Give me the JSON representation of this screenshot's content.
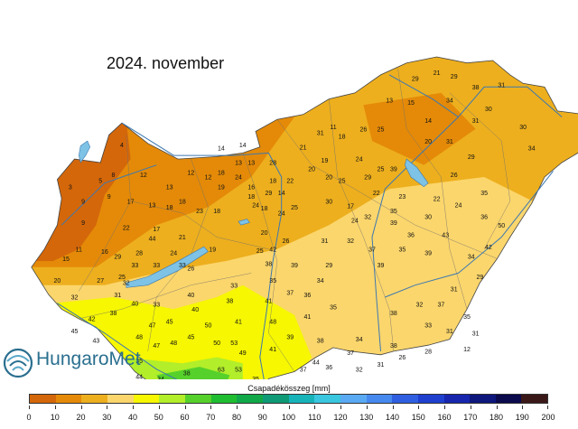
{
  "title": "2024. november",
  "logo": {
    "text": "HungaroMet",
    "icon": "swirl-logo-icon"
  },
  "legend": {
    "title": "Csapadékösszeg [mm]",
    "ticks": [
      "0",
      "10",
      "20",
      "30",
      "40",
      "50",
      "60",
      "70",
      "80",
      "90",
      "100",
      "110",
      "120",
      "130",
      "140",
      "150",
      "160",
      "170",
      "180",
      "190",
      "200"
    ],
    "colors": [
      "#d4670a",
      "#e48a08",
      "#edaf1e",
      "#fbd66c",
      "#f6f700",
      "#b2ee2a",
      "#56d12b",
      "#1fbd31",
      "#10a848",
      "#0e9a76",
      "#16b3b9",
      "#39c6df",
      "#5aaaf3",
      "#4689ef",
      "#2f5ee0",
      "#1f3fcf",
      "#1726ad",
      "#0e177c",
      "#0a0a4d",
      "#3b1818"
    ]
  },
  "station_values": [
    {
      "lon": 16.6,
      "lat": 47.5,
      "v": "3"
    },
    {
      "lon": 16.75,
      "lat": 47.38,
      "v": "9"
    },
    {
      "lon": 16.95,
      "lat": 47.55,
      "v": "5"
    },
    {
      "lon": 17.1,
      "lat": 47.6,
      "v": "8"
    },
    {
      "lon": 17.2,
      "lat": 47.85,
      "v": "4"
    },
    {
      "lon": 17.05,
      "lat": 47.42,
      "v": "9"
    },
    {
      "lon": 16.75,
      "lat": 47.2,
      "v": "9"
    },
    {
      "lon": 16.7,
      "lat": 46.98,
      "v": "11"
    },
    {
      "lon": 16.55,
      "lat": 46.9,
      "v": "15"
    },
    {
      "lon": 17.0,
      "lat": 46.96,
      "v": "16"
    },
    {
      "lon": 16.45,
      "lat": 46.72,
      "v": "20"
    },
    {
      "lon": 16.65,
      "lat": 46.58,
      "v": "32"
    },
    {
      "lon": 16.95,
      "lat": 46.72,
      "v": "27"
    },
    {
      "lon": 17.3,
      "lat": 47.38,
      "v": "17"
    },
    {
      "lon": 17.45,
      "lat": 47.6,
      "v": "12"
    },
    {
      "lon": 17.75,
      "lat": 47.5,
      "v": "13"
    },
    {
      "lon": 18.0,
      "lat": 47.62,
      "v": "12"
    },
    {
      "lon": 18.2,
      "lat": 47.58,
      "v": "12"
    },
    {
      "lon": 18.35,
      "lat": 47.5,
      "v": "19"
    },
    {
      "lon": 18.35,
      "lat": 47.62,
      "v": "18"
    },
    {
      "lon": 18.55,
      "lat": 47.58,
      "v": "24"
    },
    {
      "lon": 18.7,
      "lat": 47.5,
      "v": "16"
    },
    {
      "lon": 18.7,
      "lat": 47.7,
      "v": "13"
    },
    {
      "lon": 18.6,
      "lat": 47.85,
      "v": "14"
    },
    {
      "lon": 18.95,
      "lat": 47.7,
      "v": "28"
    },
    {
      "lon": 18.95,
      "lat": 47.55,
      "v": "18"
    },
    {
      "lon": 19.05,
      "lat": 47.45,
      "v": "14"
    },
    {
      "lon": 19.15,
      "lat": 47.55,
      "v": "22"
    },
    {
      "lon": 19.05,
      "lat": 47.28,
      "v": "24"
    },
    {
      "lon": 19.2,
      "lat": 47.33,
      "v": "25"
    },
    {
      "lon": 18.85,
      "lat": 47.32,
      "v": "18"
    },
    {
      "lon": 18.85,
      "lat": 47.12,
      "v": "20"
    },
    {
      "lon": 19.1,
      "lat": 47.05,
      "v": "26"
    },
    {
      "lon": 18.7,
      "lat": 47.42,
      "v": "18"
    },
    {
      "lon": 18.3,
      "lat": 47.3,
      "v": "18"
    },
    {
      "lon": 18.1,
      "lat": 47.3,
      "v": "23"
    },
    {
      "lon": 17.75,
      "lat": 47.33,
      "v": "18"
    },
    {
      "lon": 17.55,
      "lat": 47.35,
      "v": "13"
    },
    {
      "lon": 17.9,
      "lat": 47.38,
      "v": "18"
    },
    {
      "lon": 17.6,
      "lat": 47.15,
      "v": "17"
    },
    {
      "lon": 17.9,
      "lat": 47.08,
      "v": "21"
    },
    {
      "lon": 17.55,
      "lat": 47.07,
      "v": "44"
    },
    {
      "lon": 18.25,
      "lat": 46.98,
      "v": "19"
    },
    {
      "lon": 17.25,
      "lat": 47.16,
      "v": "22"
    },
    {
      "lon": 17.15,
      "lat": 46.92,
      "v": "29"
    },
    {
      "lon": 17.35,
      "lat": 46.85,
      "v": "33"
    },
    {
      "lon": 17.6,
      "lat": 46.85,
      "v": "33"
    },
    {
      "lon": 17.9,
      "lat": 46.85,
      "v": "33"
    },
    {
      "lon": 17.8,
      "lat": 46.95,
      "v": "24"
    },
    {
      "lon": 18.0,
      "lat": 46.82,
      "v": "26"
    },
    {
      "lon": 17.2,
      "lat": 46.75,
      "v": "25"
    },
    {
      "lon": 17.15,
      "lat": 46.6,
      "v": "31"
    },
    {
      "lon": 17.25,
      "lat": 46.7,
      "v": "32"
    },
    {
      "lon": 17.35,
      "lat": 46.53,
      "v": "40"
    },
    {
      "lon": 17.6,
      "lat": 46.52,
      "v": "33"
    },
    {
      "lon": 17.1,
      "lat": 46.45,
      "v": "38"
    },
    {
      "lon": 16.85,
      "lat": 46.4,
      "v": "42"
    },
    {
      "lon": 16.65,
      "lat": 46.3,
      "v": "45"
    },
    {
      "lon": 16.9,
      "lat": 46.22,
      "v": "43"
    },
    {
      "lon": 17.4,
      "lat": 46.25,
      "v": "48"
    },
    {
      "lon": 17.55,
      "lat": 46.35,
      "v": "47"
    },
    {
      "lon": 17.75,
      "lat": 46.38,
      "v": "45"
    },
    {
      "lon": 18.05,
      "lat": 46.48,
      "v": "40"
    },
    {
      "lon": 18.45,
      "lat": 46.55,
      "v": "38"
    },
    {
      "lon": 18.5,
      "lat": 46.68,
      "v": "33"
    },
    {
      "lon": 17.6,
      "lat": 46.18,
      "v": "47"
    },
    {
      "lon": 17.8,
      "lat": 46.2,
      "v": "48"
    },
    {
      "lon": 18.0,
      "lat": 46.25,
      "v": "45"
    },
    {
      "lon": 18.3,
      "lat": 46.2,
      "v": "50"
    },
    {
      "lon": 18.5,
      "lat": 46.2,
      "v": "53"
    },
    {
      "lon": 18.55,
      "lat": 46.38,
      "v": "41"
    },
    {
      "lon": 18.6,
      "lat": 46.12,
      "v": "49"
    },
    {
      "lon": 18.55,
      "lat": 45.98,
      "v": "53"
    },
    {
      "lon": 18.35,
      "lat": 45.98,
      "v": "63"
    },
    {
      "lon": 17.4,
      "lat": 46.05,
      "v": "35"
    },
    {
      "lon": 17.4,
      "lat": 45.92,
      "v": "44"
    },
    {
      "lon": 17.45,
      "lat": 45.85,
      "v": "42"
    },
    {
      "lon": 17.65,
      "lat": 45.9,
      "v": "34"
    },
    {
      "lon": 17.95,
      "lat": 45.95,
      "v": "38"
    },
    {
      "lon": 18.1,
      "lat": 45.87,
      "v": "49"
    },
    {
      "lon": 18.05,
      "lat": 45.8,
      "v": "56"
    },
    {
      "lon": 18.25,
      "lat": 45.75,
      "v": "49"
    },
    {
      "lon": 18.4,
      "lat": 45.85,
      "v": "55"
    },
    {
      "lon": 17.2,
      "lat": 45.72,
      "v": "56"
    },
    {
      "lon": 17.9,
      "lat": 45.6,
      "v": "51"
    },
    {
      "lon": 18.15,
      "lat": 45.48,
      "v": "54"
    },
    {
      "lon": 18.6,
      "lat": 45.65,
      "v": "32"
    },
    {
      "lon": 18.85,
      "lat": 45.68,
      "v": "44"
    },
    {
      "lon": 18.9,
      "lat": 45.86,
      "v": "40"
    },
    {
      "lon": 18.75,
      "lat": 45.9,
      "v": "35"
    },
    {
      "lon": 18.95,
      "lat": 46.15,
      "v": "41"
    },
    {
      "lon": 18.95,
      "lat": 46.38,
      "v": "48"
    },
    {
      "lon": 19.35,
      "lat": 46.42,
      "v": "41"
    },
    {
      "lon": 18.9,
      "lat": 46.55,
      "v": "41"
    },
    {
      "lon": 19.15,
      "lat": 46.25,
      "v": "39"
    },
    {
      "lon": 19.5,
      "lat": 46.22,
      "v": "38"
    },
    {
      "lon": 19.45,
      "lat": 46.04,
      "v": "44"
    },
    {
      "lon": 19.3,
      "lat": 45.98,
      "v": "37"
    },
    {
      "lon": 19.6,
      "lat": 46.0,
      "v": "36"
    },
    {
      "lon": 19.85,
      "lat": 46.12,
      "v": "37"
    },
    {
      "lon": 19.95,
      "lat": 46.23,
      "v": "34"
    },
    {
      "lon": 19.95,
      "lat": 45.98,
      "v": "32"
    },
    {
      "lon": 20.2,
      "lat": 46.02,
      "v": "31"
    },
    {
      "lon": 20.45,
      "lat": 46.08,
      "v": "26"
    },
    {
      "lon": 20.35,
      "lat": 46.18,
      "v": "38"
    },
    {
      "lon": 20.75,
      "lat": 46.13,
      "v": "28"
    },
    {
      "lon": 20.75,
      "lat": 46.35,
      "v": "33"
    },
    {
      "lon": 20.9,
      "lat": 46.52,
      "v": "37"
    },
    {
      "lon": 20.65,
      "lat": 46.52,
      "v": "32"
    },
    {
      "lon": 20.35,
      "lat": 46.45,
      "v": "38"
    },
    {
      "lon": 19.65,
      "lat": 46.5,
      "v": "35"
    },
    {
      "lon": 19.35,
      "lat": 46.6,
      "v": "36"
    },
    {
      "lon": 19.15,
      "lat": 46.62,
      "v": "37"
    },
    {
      "lon": 19.5,
      "lat": 46.72,
      "v": "34"
    },
    {
      "lon": 19.6,
      "lat": 46.85,
      "v": "29"
    },
    {
      "lon": 19.2,
      "lat": 46.85,
      "v": "39"
    },
    {
      "lon": 18.95,
      "lat": 46.72,
      "v": "35"
    },
    {
      "lon": 18.9,
      "lat": 46.86,
      "v": "38"
    },
    {
      "lon": 18.95,
      "lat": 46.98,
      "v": "42"
    },
    {
      "lon": 18.8,
      "lat": 46.97,
      "v": "25"
    },
    {
      "lon": 19.55,
      "lat": 47.05,
      "v": "31"
    },
    {
      "lon": 19.9,
      "lat": 47.22,
      "v": "24"
    },
    {
      "lon": 19.85,
      "lat": 47.05,
      "v": "32"
    },
    {
      "lon": 20.1,
      "lat": 46.98,
      "v": "37"
    },
    {
      "lon": 20.2,
      "lat": 46.85,
      "v": "39"
    },
    {
      "lon": 20.45,
      "lat": 46.98,
      "v": "35"
    },
    {
      "lon": 20.75,
      "lat": 46.95,
      "v": "39"
    },
    {
      "lon": 20.95,
      "lat": 47.1,
      "v": "43"
    },
    {
      "lon": 20.55,
      "lat": 47.1,
      "v": "36"
    },
    {
      "lon": 20.35,
      "lat": 47.2,
      "v": "39"
    },
    {
      "lon": 20.05,
      "lat": 47.25,
      "v": "32"
    },
    {
      "lon": 19.85,
      "lat": 47.34,
      "v": "17"
    },
    {
      "lon": 19.6,
      "lat": 47.38,
      "v": "30"
    },
    {
      "lon": 19.75,
      "lat": 47.55,
      "v": "25"
    },
    {
      "lon": 19.55,
      "lat": 47.72,
      "v": "19"
    },
    {
      "lon": 19.6,
      "lat": 47.58,
      "v": "20"
    },
    {
      "lon": 19.4,
      "lat": 47.65,
      "v": "20"
    },
    {
      "lon": 19.3,
      "lat": 47.83,
      "v": "21"
    },
    {
      "lon": 19.5,
      "lat": 47.95,
      "v": "31"
    },
    {
      "lon": 19.75,
      "lat": 47.92,
      "v": "18"
    },
    {
      "lon": 19.65,
      "lat": 48.0,
      "v": "11"
    },
    {
      "lon": 20.0,
      "lat": 47.98,
      "v": "26"
    },
    {
      "lon": 20.2,
      "lat": 47.98,
      "v": "25"
    },
    {
      "lon": 19.95,
      "lat": 47.73,
      "v": "24"
    },
    {
      "lon": 20.2,
      "lat": 47.65,
      "v": "25"
    },
    {
      "lon": 20.35,
      "lat": 47.65,
      "v": "39"
    },
    {
      "lon": 20.05,
      "lat": 47.58,
      "v": "29"
    },
    {
      "lon": 20.15,
      "lat": 47.45,
      "v": "22"
    },
    {
      "lon": 20.45,
      "lat": 47.42,
      "v": "23"
    },
    {
      "lon": 20.35,
      "lat": 47.3,
      "v": "35"
    },
    {
      "lon": 20.75,
      "lat": 47.25,
      "v": "30"
    },
    {
      "lon": 20.85,
      "lat": 47.4,
      "v": "22"
    },
    {
      "lon": 21.1,
      "lat": 47.35,
      "v": "24"
    },
    {
      "lon": 21.4,
      "lat": 47.45,
      "v": "35"
    },
    {
      "lon": 21.4,
      "lat": 47.25,
      "v": "36"
    },
    {
      "lon": 21.6,
      "lat": 47.18,
      "v": "50"
    },
    {
      "lon": 21.45,
      "lat": 47.0,
      "v": "42"
    },
    {
      "lon": 21.25,
      "lat": 46.92,
      "v": "34"
    },
    {
      "lon": 21.35,
      "lat": 46.75,
      "v": "29"
    },
    {
      "lon": 21.05,
      "lat": 46.65,
      "v": "31"
    },
    {
      "lon": 21.2,
      "lat": 46.42,
      "v": "35"
    },
    {
      "lon": 21.0,
      "lat": 46.3,
      "v": "31"
    },
    {
      "lon": 21.3,
      "lat": 46.28,
      "v": "31"
    },
    {
      "lon": 21.2,
      "lat": 46.15,
      "v": "12"
    },
    {
      "lon": 21.05,
      "lat": 47.6,
      "v": "26"
    },
    {
      "lon": 21.25,
      "lat": 47.75,
      "v": "29"
    },
    {
      "lon": 21.0,
      "lat": 47.88,
      "v": "31"
    },
    {
      "lon": 20.75,
      "lat": 47.88,
      "v": "20"
    },
    {
      "lon": 20.75,
      "lat": 48.05,
      "v": "14"
    },
    {
      "lon": 20.55,
      "lat": 48.2,
      "v": "15"
    },
    {
      "lon": 20.3,
      "lat": 48.22,
      "v": "13"
    },
    {
      "lon": 20.6,
      "lat": 48.4,
      "v": "29"
    },
    {
      "lon": 20.85,
      "lat": 48.45,
      "v": "21"
    },
    {
      "lon": 21.05,
      "lat": 48.42,
      "v": "29"
    },
    {
      "lon": 21.3,
      "lat": 48.33,
      "v": "38"
    },
    {
      "lon": 21.6,
      "lat": 48.35,
      "v": "31"
    },
    {
      "lon": 21.45,
      "lat": 48.15,
      "v": "30"
    },
    {
      "lon": 21.0,
      "lat": 48.22,
      "v": "34"
    },
    {
      "lon": 21.85,
      "lat": 48.0,
      "v": "30"
    },
    {
      "lon": 21.95,
      "lat": 47.82,
      "v": "34"
    },
    {
      "lon": 21.3,
      "lat": 48.05,
      "v": "31"
    },
    {
      "lon": 18.35,
      "lat": 47.82,
      "v": "14"
    },
    {
      "lon": 18.55,
      "lat": 47.7,
      "v": "13"
    },
    {
      "lon": 18.75,
      "lat": 47.35,
      "v": "24"
    },
    {
      "lon": 18.9,
      "lat": 47.45,
      "v": "29"
    },
    {
      "lon": 17.4,
      "lat": 46.95,
      "v": "28"
    },
    {
      "lon": 18.0,
      "lat": 46.6,
      "v": "40"
    },
    {
      "lon": 18.2,
      "lat": 46.35,
      "v": "50"
    }
  ]
}
